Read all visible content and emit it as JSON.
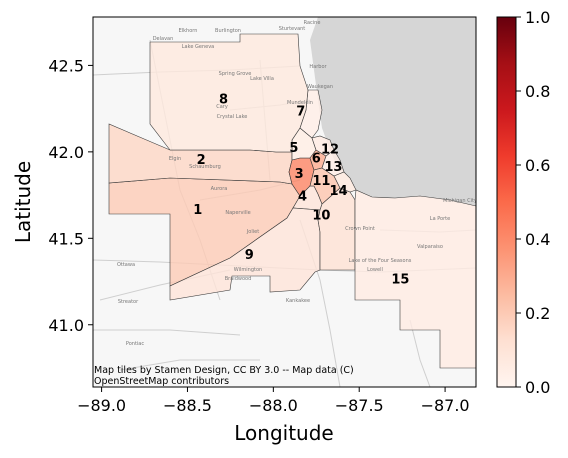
{
  "chart_data": {
    "type": "choropleth-map",
    "xlabel": "Longitude",
    "ylabel": "Latitude",
    "xlim": [
      -89.05,
      -86.82
    ],
    "ylim": [
      40.64,
      42.78
    ],
    "x_ticks": [
      -89.0,
      -88.5,
      -88.0,
      -87.5,
      -87.0
    ],
    "x_tick_labels": [
      "−89.0",
      "−88.5",
      "−88.0",
      "−87.5",
      "−87.0"
    ],
    "y_ticks": [
      41.0,
      41.5,
      42.0,
      42.5
    ],
    "y_tick_labels": [
      "41.0",
      "41.5",
      "42.0",
      "42.5"
    ],
    "colorbar": {
      "colormap": "Reds",
      "range": [
        0.0,
        1.0
      ],
      "ticks": [
        0.0,
        0.2,
        0.4,
        0.6,
        0.8,
        1.0
      ],
      "tick_labels": [
        "0.0",
        "0.2",
        "0.4",
        "0.6",
        "0.8",
        "1.0"
      ]
    },
    "regions": [
      {
        "label": "1",
        "lon": -88.44,
        "lat": 41.66,
        "value": 0.2
      },
      {
        "label": "2",
        "lon": -88.42,
        "lat": 41.95,
        "value": 0.16
      },
      {
        "label": "3",
        "lon": -87.85,
        "lat": 41.87,
        "value": 0.42
      },
      {
        "label": "4",
        "lon": -87.83,
        "lat": 41.74,
        "value": 0.1
      },
      {
        "label": "5",
        "lon": -87.88,
        "lat": 42.02,
        "value": 0.05
      },
      {
        "label": "6",
        "lon": -87.75,
        "lat": 41.96,
        "value": 0.3
      },
      {
        "label": "7",
        "lon": -87.84,
        "lat": 42.23,
        "value": 0.04
      },
      {
        "label": "8",
        "lon": -88.29,
        "lat": 42.3,
        "value": 0.08
      },
      {
        "label": "9",
        "lon": -88.14,
        "lat": 41.4,
        "value": 0.1
      },
      {
        "label": "10",
        "lon": -87.72,
        "lat": 41.63,
        "value": 0.12
      },
      {
        "label": "11",
        "lon": -87.72,
        "lat": 41.83,
        "value": 0.22
      },
      {
        "label": "12",
        "lon": -87.67,
        "lat": 42.01,
        "value": 0.06
      },
      {
        "label": "13",
        "lon": -87.65,
        "lat": 41.91,
        "value": 0.04
      },
      {
        "label": "14",
        "lon": -87.62,
        "lat": 41.77,
        "value": 0.08
      },
      {
        "label": "15",
        "lon": -87.26,
        "lat": 41.26,
        "value": 0.06
      }
    ],
    "attribution": "Map tiles by Stamen Design, CC BY 3.0 -- Map data (C)\nOpenStreetMap contributors"
  },
  "map_place_labels": [
    "Elkhorn",
    "Burlington",
    "Racine",
    "Delavan",
    "Lake Geneva",
    "Sturtevant",
    "Spring Grove",
    "Lake Villa",
    "Harbor",
    "Crystal Lake",
    "Mundelein",
    "Naperville",
    "Aurora",
    "Joliet",
    "Ottawa",
    "Kankakee",
    "Streator",
    "Pontiac",
    "Wilmington",
    "Braidwood",
    "Michigan City",
    "La Porte",
    "Lowell",
    "Crown Point",
    "Schaumburg",
    "Elgin",
    "Waukegan",
    "Cary",
    "Valparaiso",
    "Lake of the Four Seasons"
  ]
}
